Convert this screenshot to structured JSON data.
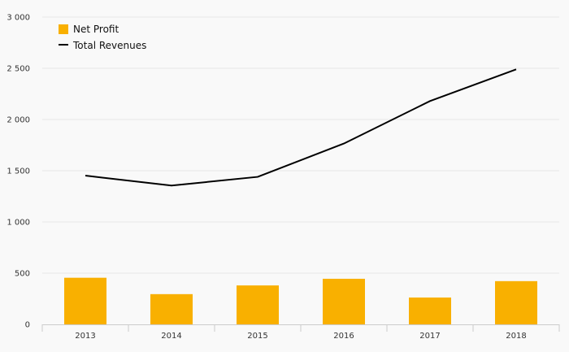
{
  "chart_data": {
    "type": "bar",
    "title": "",
    "xlabel": "",
    "ylabel": "",
    "categories": [
      "2013",
      "2014",
      "2015",
      "2016",
      "2017",
      "2018"
    ],
    "ylim": [
      0,
      3000
    ],
    "yticks": [
      0,
      500,
      1000,
      1500,
      2000,
      2500,
      3000
    ],
    "ytick_labels": [
      "0",
      "500",
      "1 000",
      "1 500",
      "2 000",
      "2 500",
      "3 000"
    ],
    "grid": true,
    "legend_position": "top-left",
    "series": [
      {
        "name": "Net Profit",
        "type": "bar",
        "color": "#f9b000",
        "values": [
          455,
          295,
          380,
          445,
          262,
          422
        ]
      },
      {
        "name": "Total Revenues",
        "type": "line",
        "color": "#000000",
        "values": [
          1452,
          1355,
          1440,
          1765,
          2180,
          2490
        ]
      }
    ]
  }
}
